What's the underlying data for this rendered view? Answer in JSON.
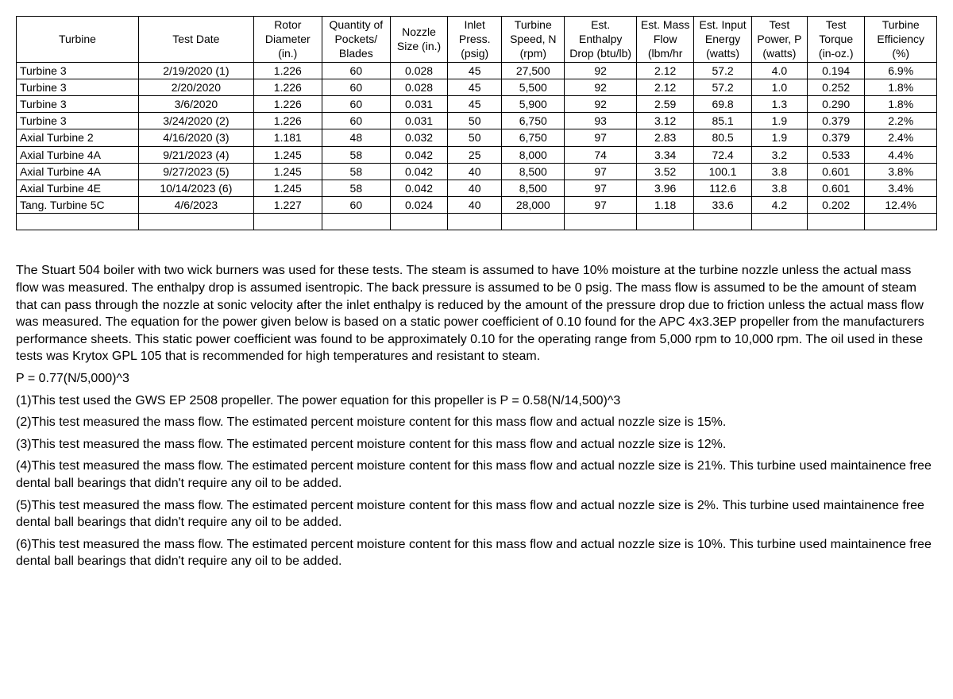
{
  "table": {
    "headers": {
      "turbine": "Turbine",
      "date": "Test Date",
      "rotor": "Rotor Diameter (in.)",
      "qty": "Quantity of Pockets/ Blades",
      "nozzle": "Nozzle Size (in.)",
      "inlet": "Inlet Press. (psig)",
      "speed": "Turbine Speed, N (rpm)",
      "enth": "Est. Enthalpy Drop (btu/lb)",
      "mass": "Est. Mass Flow (lbm/hr",
      "energy": "Est. Input Energy (watts)",
      "power": "Test Power, P (watts)",
      "torque": "Test Torque (in-oz.)",
      "eff": "Turbine Efficiency (%)"
    },
    "rows": [
      {
        "turbine": "Turbine 3",
        "date": "2/19/2020 (1)",
        "rotor": "1.226",
        "qty": "60",
        "nozzle": "0.028",
        "inlet": "45",
        "speed": "27,500",
        "enth": "92",
        "mass": "2.12",
        "energy": "57.2",
        "power": "4.0",
        "torque": "0.194",
        "eff": "6.9%"
      },
      {
        "turbine": "Turbine 3",
        "date": "2/20/2020",
        "rotor": "1.226",
        "qty": "60",
        "nozzle": "0.028",
        "inlet": "45",
        "speed": "5,500",
        "enth": "92",
        "mass": "2.12",
        "energy": "57.2",
        "power": "1.0",
        "torque": "0.252",
        "eff": "1.8%"
      },
      {
        "turbine": "Turbine 3",
        "date": "3/6/2020",
        "rotor": "1.226",
        "qty": "60",
        "nozzle": "0.031",
        "inlet": "45",
        "speed": "5,900",
        "enth": "92",
        "mass": "2.59",
        "energy": "69.8",
        "power": "1.3",
        "torque": "0.290",
        "eff": "1.8%"
      },
      {
        "turbine": "Turbine 3",
        "date": "3/24/2020 (2)",
        "rotor": "1.226",
        "qty": "60",
        "nozzle": "0.031",
        "inlet": "50",
        "speed": "6,750",
        "enth": "93",
        "mass": "3.12",
        "energy": "85.1",
        "power": "1.9",
        "torque": "0.379",
        "eff": "2.2%"
      },
      {
        "turbine": "Axial Turbine 2",
        "date": "4/16/2020 (3)",
        "rotor": "1.181",
        "qty": "48",
        "nozzle": "0.032",
        "inlet": "50",
        "speed": "6,750",
        "enth": "97",
        "mass": "2.83",
        "energy": "80.5",
        "power": "1.9",
        "torque": "0.379",
        "eff": "2.4%"
      },
      {
        "turbine": "Axial Turbine 4A",
        "date": "9/21/2023 (4)",
        "rotor": "1.245",
        "qty": "58",
        "nozzle": "0.042",
        "inlet": "25",
        "speed": "8,000",
        "enth": "74",
        "mass": "3.34",
        "energy": "72.4",
        "power": "3.2",
        "torque": "0.533",
        "eff": "4.4%"
      },
      {
        "turbine": "Axial Turbine 4A",
        "date": "9/27/2023 (5)",
        "rotor": "1.245",
        "qty": "58",
        "nozzle": "0.042",
        "inlet": "40",
        "speed": "8,500",
        "enth": "97",
        "mass": "3.52",
        "energy": "100.1",
        "power": "3.8",
        "torque": "0.601",
        "eff": "3.8%"
      },
      {
        "turbine": "Axial Turbine 4E",
        "date": "10/14/2023 (6)",
        "rotor": "1.245",
        "qty": "58",
        "nozzle": "0.042",
        "inlet": "40",
        "speed": "8,500",
        "enth": "97",
        "mass": "3.96",
        "energy": "112.6",
        "power": "3.8",
        "torque": "0.601",
        "eff": "3.4%"
      },
      {
        "turbine": "Tang. Turbine 5C",
        "date": "4/6/2023",
        "rotor": "1.227",
        "qty": "60",
        "nozzle": "0.024",
        "inlet": "40",
        "speed": "28,000",
        "enth": "97",
        "mass": "1.18",
        "energy": "33.6",
        "power": "4.2",
        "torque": "0.202",
        "eff": "12.4%"
      }
    ]
  },
  "notes": {
    "main": "The Stuart 504 boiler with two wick burners was used for these tests. The steam is assumed to have 10% moisture at the turbine nozzle unless the actual mass flow was measured.  The enthalpy drop is assumed isentropic. The back pressure is assumed to be 0 psig.  The mass flow is assumed to be the amount of steam  that can pass through  the nozzle at sonic velocity after the inlet enthalpy is reduced by the amount of the pressure drop due to friction unless the actual mass flow was measured.  The equation for the power given below is based on a static power coefficient of 0.10 found for the APC 4x3.3EP propeller from the manufacturers performance sheets.   This static power coefficient was found to be approximately 0.10 for the operating range from 5,000 rpm to 10,000 rpm.  The oil used in these tests was Krytox GPL 105 that is recommended for high temperatures and resistant to steam.",
    "equation": "P = 0.77(N/5,000)^3",
    "foot1": "(1)This test used the GWS EP 2508 propeller.  The power equation for this propeller is P = 0.58(N/14,500)^3",
    "foot2": "(2)This test measured the mass flow. The estimated percent moisture content for this mass flow and actual nozzle size is 15%.",
    "foot3": "(3)This test measured the mass flow. The estimated percent moisture content for this mass flow and actual nozzle size is 12%.",
    "foot4": "(4)This test measured the mass flow. The estimated percent moisture content for this mass flow and actual nozzle size is 21%. This turbine used maintainence free dental ball bearings that didn't require any oil to be added.",
    "foot5": "(5)This test measured the mass flow. The estimated percent moisture content for this mass flow and actual nozzle size is 2%. This turbine used maintainence free dental ball bearings that didn't require any oil to be added.",
    "foot6": "(6)This test measured the mass flow. The estimated percent moisture content for this mass flow and actual nozzle size is 10%. This turbine used maintainence free dental ball bearings that didn't require any oil to be added."
  }
}
